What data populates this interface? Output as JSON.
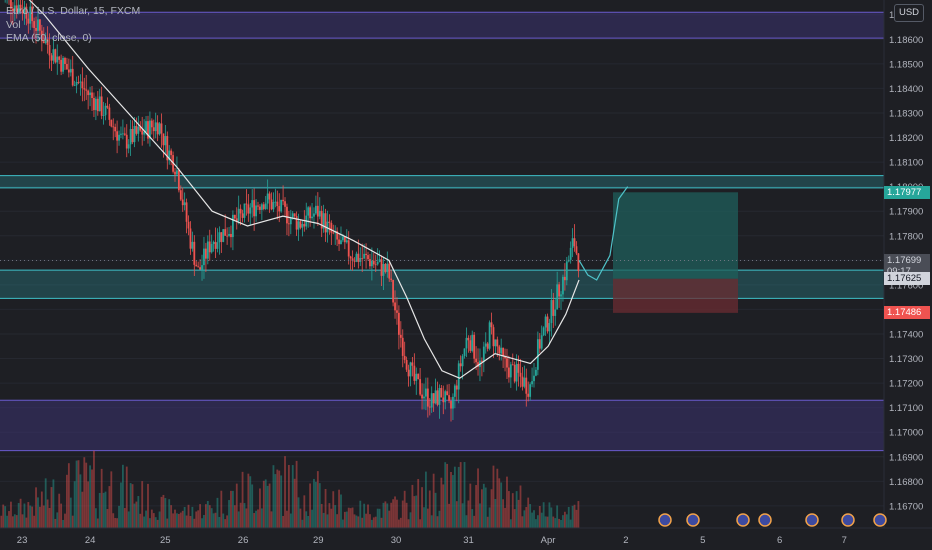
{
  "header": {
    "symbol_line": "Euro / U.S. Dollar, 15, FXCM",
    "volume_label": "Vol",
    "ema_label": "EMA (50, close, 0)"
  },
  "currency_button": "USD",
  "colors": {
    "background": "#1e1f24",
    "bull": "#26a69a",
    "bear": "#ef5350",
    "zone_purple": "#3b3270",
    "zone_cyan": "#2b8a91",
    "take_profit": "#1f5f5b",
    "stop_loss": "#6b2c31",
    "ema": "#e6e6e6"
  },
  "chart_data": {
    "type": "candlestick",
    "symbol": "EURUSD",
    "timeframe": "15",
    "indicators": [
      "EMA (50, close, 0)",
      "Vol"
    ],
    "y_range": [
      1.1661,
      1.1877
    ],
    "price_ticks": [
      "1.18700",
      "1.18600",
      "1.18500",
      "1.18400",
      "1.18300",
      "1.18200",
      "1.18100",
      "1.18000",
      "1.17900",
      "1.17800",
      "1.17700",
      "1.17600",
      "1.17500",
      "1.17400",
      "1.17300",
      "1.17200",
      "1.17100",
      "1.17000",
      "1.16900",
      "1.16800",
      "1.16700"
    ],
    "x_ticks": [
      "23",
      "24",
      "25",
      "26",
      "29",
      "30",
      "31",
      "Apr",
      "2",
      "5",
      "6",
      "7"
    ],
    "price_path": [
      [
        0,
        1.1878
      ],
      [
        0.03,
        1.1872
      ],
      [
        0.06,
        1.1855
      ],
      [
        0.09,
        1.1842
      ],
      [
        0.12,
        1.183
      ],
      [
        0.14,
        1.1818
      ],
      [
        0.16,
        1.1822
      ],
      [
        0.18,
        1.1826
      ],
      [
        0.19,
        1.1815
      ],
      [
        0.2,
        1.1808
      ],
      [
        0.215,
        1.178
      ],
      [
        0.225,
        1.1765
      ],
      [
        0.24,
        1.1778
      ],
      [
        0.26,
        1.1783
      ],
      [
        0.28,
        1.179
      ],
      [
        0.3,
        1.1795
      ],
      [
        0.32,
        1.179
      ],
      [
        0.34,
        1.1785
      ],
      [
        0.36,
        1.179
      ],
      [
        0.38,
        1.1778
      ],
      [
        0.4,
        1.1772
      ],
      [
        0.42,
        1.177
      ],
      [
        0.44,
        1.1765
      ],
      [
        0.45,
        1.1745
      ],
      [
        0.46,
        1.173
      ],
      [
        0.47,
        1.172
      ],
      [
        0.49,
        1.1712
      ],
      [
        0.5,
        1.1716
      ],
      [
        0.51,
        1.1708
      ],
      [
        0.52,
        1.1725
      ],
      [
        0.53,
        1.174
      ],
      [
        0.545,
        1.1726
      ],
      [
        0.555,
        1.1742
      ],
      [
        0.57,
        1.1728
      ],
      [
        0.59,
        1.1722
      ],
      [
        0.6,
        1.1718
      ],
      [
        0.61,
        1.1735
      ],
      [
        0.625,
        1.175
      ],
      [
        0.64,
        1.1765
      ],
      [
        0.65,
        1.1778
      ],
      [
        0.655,
        1.177
      ]
    ],
    "ema_path": [
      [
        0,
        1.1888
      ],
      [
        0.05,
        1.187
      ],
      [
        0.1,
        1.1848
      ],
      [
        0.15,
        1.1828
      ],
      [
        0.2,
        1.1808
      ],
      [
        0.24,
        1.179
      ],
      [
        0.28,
        1.1784
      ],
      [
        0.32,
        1.1788
      ],
      [
        0.36,
        1.1785
      ],
      [
        0.4,
        1.1778
      ],
      [
        0.44,
        1.177
      ],
      [
        0.46,
        1.1755
      ],
      [
        0.48,
        1.1738
      ],
      [
        0.5,
        1.1725
      ],
      [
        0.52,
        1.1722
      ],
      [
        0.54,
        1.1727
      ],
      [
        0.56,
        1.1732
      ],
      [
        0.58,
        1.173
      ],
      [
        0.6,
        1.1728
      ],
      [
        0.62,
        1.1735
      ],
      [
        0.64,
        1.1748
      ],
      [
        0.655,
        1.1762
      ]
    ],
    "projection_path": [
      [
        0.655,
        1.177
      ],
      [
        0.665,
        1.1764
      ],
      [
        0.675,
        1.1762
      ],
      [
        0.69,
        1.1772
      ],
      [
        0.7,
        1.1795
      ],
      [
        0.71,
        1.18
      ]
    ],
    "horizontal_zones": [
      {
        "kind": "supply",
        "from": 1.18605,
        "to": 1.1871,
        "color": "#3b3270"
      },
      {
        "kind": "resistance",
        "from": 1.17995,
        "to": 1.18045,
        "color": "#2b8a91"
      },
      {
        "kind": "support",
        "from": 1.17545,
        "to": 1.1766,
        "color": "#2b8a91"
      },
      {
        "kind": "demand",
        "from": 1.16925,
        "to": 1.1713,
        "color": "#3b3270"
      }
    ],
    "position": {
      "type": "long",
      "entry": 1.17625,
      "target": 1.17977,
      "stop": 1.17486
    },
    "price_labels": {
      "target": "1.17977",
      "last_price": "1.17699",
      "countdown": "09:17",
      "entry": "1.17625",
      "stop": "1.17486"
    }
  }
}
